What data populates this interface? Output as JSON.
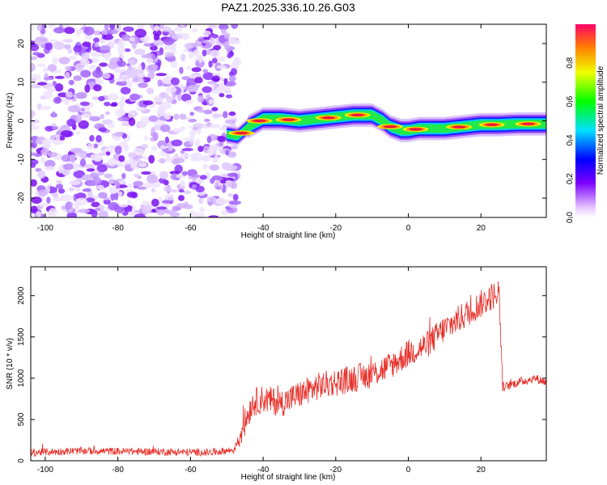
{
  "title": "PAZ1.2025.336.10.26.G03",
  "chart_data": [
    {
      "type": "heatmap",
      "name": "spectrogram",
      "xlabel": "Height of straight line (km)",
      "ylabel": "Frequency (Hz)",
      "xlim": [
        -104,
        38
      ],
      "ylim": [
        -25,
        25
      ],
      "xticks": [
        -100,
        -80,
        -60,
        -40,
        -20,
        0,
        20
      ],
      "yticks": [
        -20,
        -10,
        0,
        10,
        20
      ],
      "noise_region_x": [
        -104,
        -47
      ],
      "signal_track": {
        "x": [
          -50,
          -47,
          -44,
          -40,
          -35,
          -30,
          -25,
          -20,
          -15,
          -10,
          -7,
          -5,
          -2,
          0,
          3,
          6,
          10,
          15,
          20,
          25,
          30,
          35,
          38
        ],
        "frequency": [
          -3.5,
          -4,
          -1.5,
          0.5,
          0.5,
          0,
          0.5,
          1,
          1.5,
          1.5,
          0,
          -1.5,
          -2.5,
          -2.5,
          -2,
          -2,
          -2,
          -1.5,
          -1,
          -1,
          -0.8,
          -0.8,
          -0.8
        ]
      },
      "colorbar": {
        "label": "Normalized spectral amplitude",
        "range": [
          0,
          1
        ],
        "ticks": [
          0.0,
          0.2,
          0.4,
          0.6,
          0.8
        ],
        "tick_labels": [
          "0.0",
          "0.2",
          "0.4",
          "0.6",
          "0.8"
        ]
      }
    },
    {
      "type": "line",
      "name": "snr",
      "xlabel": "Height of straight line (km)",
      "ylabel": "SNR (10 * v/v)",
      "xlim": [
        -104,
        38
      ],
      "ylim": [
        0,
        2350
      ],
      "xticks": [
        -100,
        -80,
        -60,
        -40,
        -20,
        0,
        20
      ],
      "yticks": [
        0,
        500,
        1000,
        1500,
        2000
      ],
      "color": "#e8302a",
      "trend": {
        "x": [
          -104,
          -90,
          -70,
          -55,
          -48,
          -46,
          -43,
          -40,
          -35,
          -30,
          -25,
          -20,
          -15,
          -10,
          -5,
          0,
          5,
          10,
          15,
          20,
          25,
          26,
          27,
          30,
          35,
          38
        ],
        "y": [
          100,
          120,
          110,
          100,
          130,
          350,
          700,
          750,
          700,
          800,
          900,
          950,
          1000,
          1050,
          1150,
          1300,
          1400,
          1600,
          1750,
          1900,
          2050,
          900,
          900,
          950,
          1000,
          950
        ]
      }
    }
  ]
}
